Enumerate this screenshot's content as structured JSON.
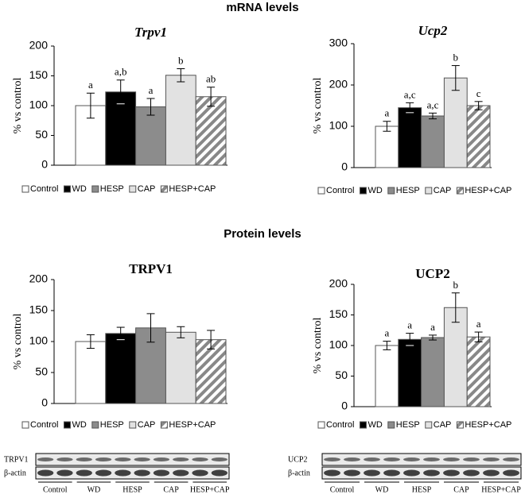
{
  "headings": [
    "mRNA levels",
    "Protein levels"
  ],
  "chart_data": [
    {
      "type": "bar",
      "title": "Trpv1",
      "ylabel": "% vs control",
      "categories": [
        "Control",
        "WD",
        "HESP",
        "CAP",
        "HESP+CAP"
      ],
      "values": [
        100,
        123,
        98,
        151,
        115
      ],
      "errors": [
        21,
        20,
        14,
        11,
        16
      ],
      "annotations": [
        "a",
        "a,b",
        "a",
        "b",
        "ab"
      ],
      "colors": [
        "#ffffff",
        "#000000",
        "#8c8c8c",
        "#e2e2e2",
        "#888888"
      ],
      "hatched": [
        false,
        false,
        false,
        false,
        true
      ],
      "ylim": [
        0,
        200
      ],
      "yticks": [
        0,
        50,
        100,
        150,
        200
      ]
    },
    {
      "type": "bar",
      "title": "Ucp2",
      "ylabel": "% vs control",
      "categories": [
        "Control",
        "WD",
        "HESP",
        "CAP",
        "HESP+CAP"
      ],
      "values": [
        100,
        145,
        125,
        217,
        150
      ],
      "errors": [
        12,
        12,
        7,
        30,
        10
      ],
      "annotations": [
        "a",
        "a,c",
        "a,c",
        "b",
        "c"
      ],
      "colors": [
        "#ffffff",
        "#000000",
        "#8c8c8c",
        "#e2e2e2",
        "#888888"
      ],
      "hatched": [
        false,
        false,
        false,
        false,
        true
      ],
      "ylim": [
        0,
        300
      ],
      "yticks": [
        0,
        100,
        200,
        300
      ]
    },
    {
      "type": "bar",
      "title": "TRPV1",
      "ylabel": "% vs control",
      "categories": [
        "Control",
        "WD",
        "HESP",
        "CAP",
        "HESP+CAP"
      ],
      "values": [
        100,
        113,
        122,
        115,
        103
      ],
      "errors": [
        11,
        10,
        23,
        9,
        15
      ],
      "colors": [
        "#ffffff",
        "#000000",
        "#8c8c8c",
        "#e2e2e2",
        "#888888"
      ],
      "hatched": [
        false,
        false,
        false,
        false,
        true
      ],
      "ylim": [
        0,
        200
      ],
      "yticks": [
        0,
        50,
        100,
        150,
        200
      ]
    },
    {
      "type": "bar",
      "title": "UCP2",
      "ylabel": "% vs control",
      "categories": [
        "Control",
        "WD",
        "HESP",
        "CAP",
        "HESP+CAP"
      ],
      "values": [
        100,
        110,
        113,
        162,
        114
      ],
      "errors": [
        7,
        10,
        4,
        24,
        8
      ],
      "annotations": [
        "a",
        "a",
        "a",
        "b",
        "a"
      ],
      "colors": [
        "#ffffff",
        "#000000",
        "#8c8c8c",
        "#e2e2e2",
        "#888888"
      ],
      "hatched": [
        false,
        false,
        false,
        false,
        true
      ],
      "ylim": [
        0,
        200
      ],
      "yticks": [
        0,
        50,
        100,
        150,
        200
      ]
    }
  ],
  "blots": [
    {
      "rows": [
        "TRPV1",
        "β-actin"
      ],
      "lanes": [
        "Control",
        "WD",
        "HESP",
        "CAP",
        "HESP+CAP"
      ]
    },
    {
      "rows": [
        "UCP2",
        "β-actin"
      ],
      "lanes": [
        "Control",
        "WD",
        "HESP",
        "CAP",
        "HESP+CAP"
      ]
    }
  ]
}
